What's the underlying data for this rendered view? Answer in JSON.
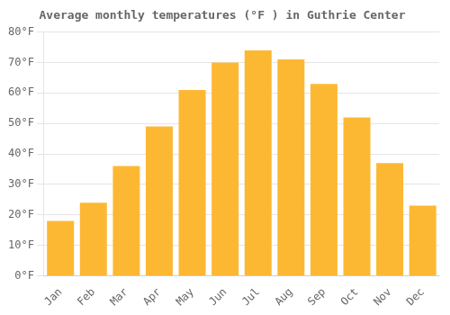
{
  "chart_data": {
    "type": "bar",
    "title": "Average monthly temperatures (°F ) in Guthrie Center",
    "categories": [
      "Jan",
      "Feb",
      "Mar",
      "Apr",
      "May",
      "Jun",
      "Jul",
      "Aug",
      "Sep",
      "Oct",
      "Nov",
      "Dec"
    ],
    "values": [
      18,
      24,
      36,
      49,
      61,
      70,
      74,
      71,
      63,
      52,
      37,
      23
    ],
    "color": "#FDB833",
    "ylim": [
      0,
      80
    ],
    "yticks": [
      {
        "value": 0,
        "label": "0°F"
      },
      {
        "value": 10,
        "label": "10°F"
      },
      {
        "value": 20,
        "label": "20°F"
      },
      {
        "value": 30,
        "label": "30°F"
      },
      {
        "value": 40,
        "label": "40°F"
      },
      {
        "value": 50,
        "label": "50°F"
      },
      {
        "value": 60,
        "label": "60°F"
      },
      {
        "value": 70,
        "label": "70°F"
      },
      {
        "value": 80,
        "label": "80°F"
      }
    ],
    "grid": true
  }
}
